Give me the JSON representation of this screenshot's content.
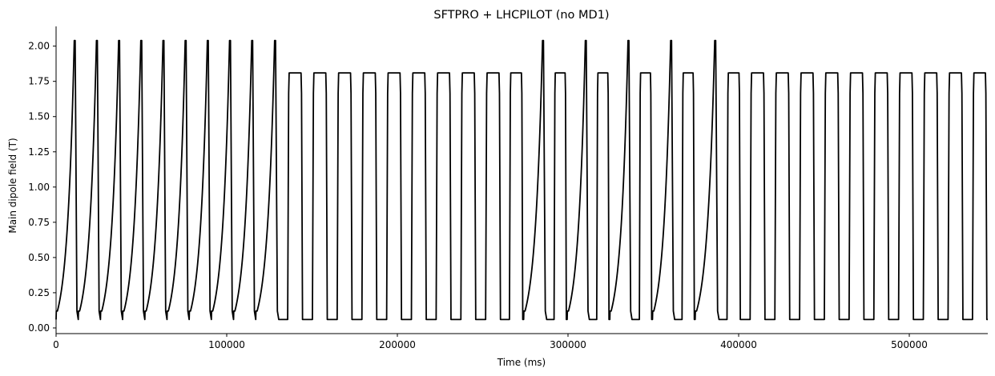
{
  "chart_data": {
    "type": "line",
    "title": "SFTPRO + LHCPILOT (no MD1)",
    "xlabel": "Time (ms)",
    "ylabel": "Main dipole field (T)",
    "xlim": [
      0,
      546000
    ],
    "ylim": [
      -0.04,
      2.14
    ],
    "xticks": [
      0,
      100000,
      200000,
      300000,
      400000,
      500000
    ],
    "xtick_labels": [
      "0",
      "100000",
      "200000",
      "300000",
      "400000",
      "500000"
    ],
    "yticks": [
      0.0,
      0.25,
      0.5,
      0.75,
      1.0,
      1.25,
      1.5,
      1.75,
      2.0
    ],
    "ytick_labels": [
      "0.00",
      "0.25",
      "0.50",
      "0.75",
      "1.00",
      "1.25",
      "1.50",
      "1.75",
      "2.00"
    ],
    "grid": false,
    "line_color": "#000000",
    "series": [
      {
        "levels": {
          "injection_B": 0.06,
          "cycle_start_B": 0.12,
          "sftpro_flat_top_B": 2.04,
          "lhcpilot_flat_top_B": 1.81
        },
        "segments": [
          {
            "cycle": "SFTPRO",
            "start": 0,
            "end": 13000
          },
          {
            "cycle": "SFTPRO",
            "start": 13000,
            "end": 26000
          },
          {
            "cycle": "SFTPRO",
            "start": 26000,
            "end": 39000
          },
          {
            "cycle": "SFTPRO",
            "start": 39000,
            "end": 52000
          },
          {
            "cycle": "SFTPRO",
            "start": 52000,
            "end": 65000
          },
          {
            "cycle": "SFTPRO",
            "start": 65000,
            "end": 78000
          },
          {
            "cycle": "SFTPRO",
            "start": 78000,
            "end": 91000
          },
          {
            "cycle": "SFTPRO",
            "start": 91000,
            "end": 104000
          },
          {
            "cycle": "SFTPRO",
            "start": 104000,
            "end": 117000
          },
          {
            "cycle": "SFTPRO",
            "start": 117000,
            "end": 130500
          },
          {
            "cycle": "LHCPILOT",
            "start": 130500,
            "end": 145000
          },
          {
            "cycle": "LHCPILOT",
            "start": 145000,
            "end": 159500
          },
          {
            "cycle": "LHCPILOT",
            "start": 159500,
            "end": 174000
          },
          {
            "cycle": "LHCPILOT",
            "start": 174000,
            "end": 188500
          },
          {
            "cycle": "LHCPILOT",
            "start": 188500,
            "end": 203000
          },
          {
            "cycle": "LHCPILOT",
            "start": 203000,
            "end": 217500
          },
          {
            "cycle": "LHCPILOT",
            "start": 217500,
            "end": 232000
          },
          {
            "cycle": "LHCPILOT",
            "start": 232000,
            "end": 246500
          },
          {
            "cycle": "LHCPILOT",
            "start": 246500,
            "end": 261000
          },
          {
            "cycle": "LHCPILOT",
            "start": 261000,
            "end": 274000
          },
          {
            "cycle": "SFTPRO",
            "start": 274000,
            "end": 287500
          },
          {
            "cycle": "LHCPILOT",
            "start": 287500,
            "end": 299500
          },
          {
            "cycle": "SFTPRO",
            "start": 299500,
            "end": 312500
          },
          {
            "cycle": "LHCPILOT",
            "start": 312500,
            "end": 324500
          },
          {
            "cycle": "SFTPRO",
            "start": 324500,
            "end": 337500
          },
          {
            "cycle": "LHCPILOT",
            "start": 337500,
            "end": 349500
          },
          {
            "cycle": "SFTPRO",
            "start": 349500,
            "end": 362500
          },
          {
            "cycle": "LHCPILOT",
            "start": 362500,
            "end": 374500
          },
          {
            "cycle": "SFTPRO",
            "start": 374500,
            "end": 388500
          },
          {
            "cycle": "LHCPILOT",
            "start": 388500,
            "end": 401500
          },
          {
            "cycle": "LHCPILOT",
            "start": 401500,
            "end": 416000
          },
          {
            "cycle": "LHCPILOT",
            "start": 416000,
            "end": 430500
          },
          {
            "cycle": "LHCPILOT",
            "start": 430500,
            "end": 445000
          },
          {
            "cycle": "LHCPILOT",
            "start": 445000,
            "end": 459500
          },
          {
            "cycle": "LHCPILOT",
            "start": 459500,
            "end": 474000
          },
          {
            "cycle": "LHCPILOT",
            "start": 474000,
            "end": 488500
          },
          {
            "cycle": "LHCPILOT",
            "start": 488500,
            "end": 503000
          },
          {
            "cycle": "LHCPILOT",
            "start": 503000,
            "end": 517500
          },
          {
            "cycle": "LHCPILOT",
            "start": 517500,
            "end": 532000
          },
          {
            "cycle": "LHCPILOT",
            "start": 532000,
            "end": 546000
          }
        ]
      }
    ]
  }
}
